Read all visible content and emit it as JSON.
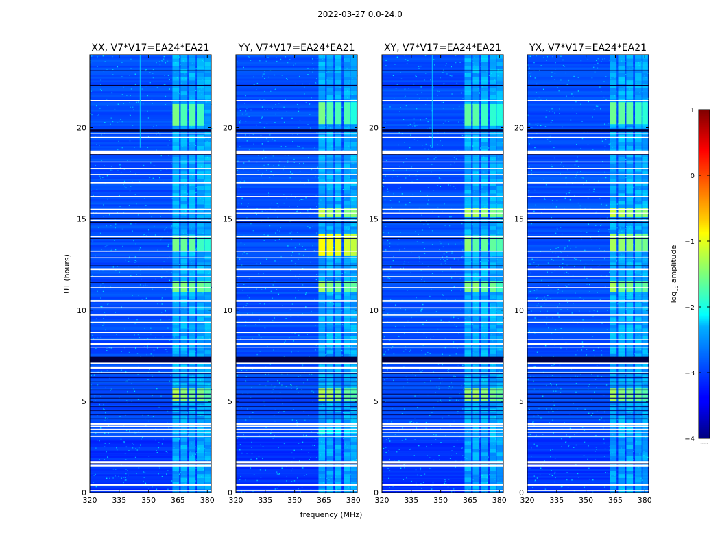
{
  "figure": {
    "suptitle": "2022-03-27 0.0-24.0"
  },
  "chart_data": {
    "type": "heatmap",
    "title": "2022-03-27 0.0-24.0",
    "xlabel": "frequency (MHz)",
    "ylabel": "UT (hours)",
    "xlim": [
      320,
      382
    ],
    "ylim": [
      0,
      24
    ],
    "xticks": [
      "320",
      "335",
      "350",
      "365",
      "380"
    ],
    "xtick_values": [
      320,
      335,
      350,
      365,
      380
    ],
    "yticks": [
      "0",
      "5",
      "10",
      "15",
      "20"
    ],
    "ytick_values": [
      0,
      5,
      10,
      15,
      20
    ],
    "panels": [
      {
        "title": "XX, V7*V17=EA24*EA21",
        "pol": "XX"
      },
      {
        "title": "YY, V7*V17=EA24*EA21",
        "pol": "YY"
      },
      {
        "title": "XY, V7*V17=EA24*EA21",
        "pol": "XY"
      },
      {
        "title": "YX, V7*V17=EA24*EA21",
        "pol": "YX"
      }
    ],
    "colorbar": {
      "label": "log10 amplitude",
      "label_main": "log",
      "label_sub": "10",
      "label_rest": " amplitude",
      "range": [
        -4,
        1
      ],
      "ticks": [
        "1",
        "0",
        "−1",
        "−2",
        "−3",
        "−4"
      ],
      "tick_values": [
        1,
        0,
        -1,
        -2,
        -3,
        -4
      ],
      "colormap": "jet",
      "footer": "......"
    },
    "background_level": -3.0,
    "active_band_mhz": [
      362,
      381
    ],
    "blanked_intervals_hours": [
      [
        0.08,
        0.14
      ],
      [
        0.38,
        0.46
      ],
      [
        1.4,
        1.52
      ],
      [
        1.6,
        1.72
      ],
      [
        3.05,
        3.12
      ],
      [
        3.28,
        3.34
      ],
      [
        3.42,
        3.5
      ],
      [
        3.58,
        3.66
      ],
      [
        3.72,
        3.8
      ],
      [
        6.55,
        6.6
      ],
      [
        6.8,
        6.88
      ],
      [
        7.05,
        7.12
      ],
      [
        7.95,
        8.0
      ],
      [
        8.1,
        8.2
      ],
      [
        8.35,
        8.4
      ],
      [
        8.75,
        8.8
      ],
      [
        9.3,
        9.36
      ],
      [
        9.7,
        9.76
      ],
      [
        10.1,
        10.16
      ],
      [
        10.45,
        10.55
      ],
      [
        11.2,
        11.26
      ],
      [
        11.8,
        11.86
      ],
      [
        12.2,
        12.3
      ],
      [
        12.85,
        12.9
      ],
      [
        13.2,
        13.26
      ],
      [
        14.0,
        14.06
      ],
      [
        14.9,
        14.96
      ],
      [
        15.3,
        15.34
      ],
      [
        15.5,
        15.56
      ],
      [
        16.2,
        16.26
      ],
      [
        16.95,
        17.05
      ],
      [
        17.4,
        17.46
      ],
      [
        17.75,
        17.8
      ],
      [
        18.1,
        18.15
      ],
      [
        18.55,
        18.75
      ],
      [
        19.45,
        19.5
      ],
      [
        19.65,
        19.7
      ],
      [
        21.45,
        21.52
      ]
    ],
    "dark_intervals_hours": [
      [
        1.55,
        1.6
      ],
      [
        3.9,
        6.55
      ],
      [
        7.12,
        7.45
      ],
      [
        11.5,
        11.55
      ],
      [
        12.4,
        12.45
      ],
      [
        13.9,
        13.95
      ],
      [
        14.8,
        14.85
      ],
      [
        15.0,
        15.05
      ],
      [
        18.5,
        18.55
      ],
      [
        19.8,
        19.9
      ],
      [
        22.3,
        22.35
      ],
      [
        23.1,
        23.15
      ]
    ],
    "bright_blocks": [
      {
        "pol": [
          "XX",
          "XY"
        ],
        "t": [
          20.1,
          21.3
        ],
        "level": -1.6
      },
      {
        "pol": [
          "YY",
          "YX"
        ],
        "t": [
          20.2,
          21.4
        ],
        "level": -1.6
      },
      {
        "pol": [
          "XX",
          "XY"
        ],
        "t": [
          13.2,
          14.1
        ],
        "level": -1.5
      },
      {
        "pol": [
          "YY"
        ],
        "t": [
          13.0,
          14.2
        ],
        "level": -0.8
      },
      {
        "pol": [
          "YX"
        ],
        "t": [
          13.2,
          14.2
        ],
        "level": -1.3
      },
      {
        "pol": [
          "YY",
          "XY",
          "YX"
        ],
        "t": [
          15.1,
          15.6
        ],
        "level": -1.2
      },
      {
        "pol": [
          "XX",
          "XY",
          "YY",
          "YX"
        ],
        "t": [
          11.0,
          11.6
        ],
        "level": -1.4
      },
      {
        "pol": [
          "XX",
          "XY",
          "YY",
          "YX"
        ],
        "t": [
          5.0,
          5.7
        ],
        "level": -1.3
      },
      {
        "pol": [
          "YY"
        ],
        "t": [
          3.2,
          3.5
        ],
        "level": -2.0
      }
    ]
  }
}
